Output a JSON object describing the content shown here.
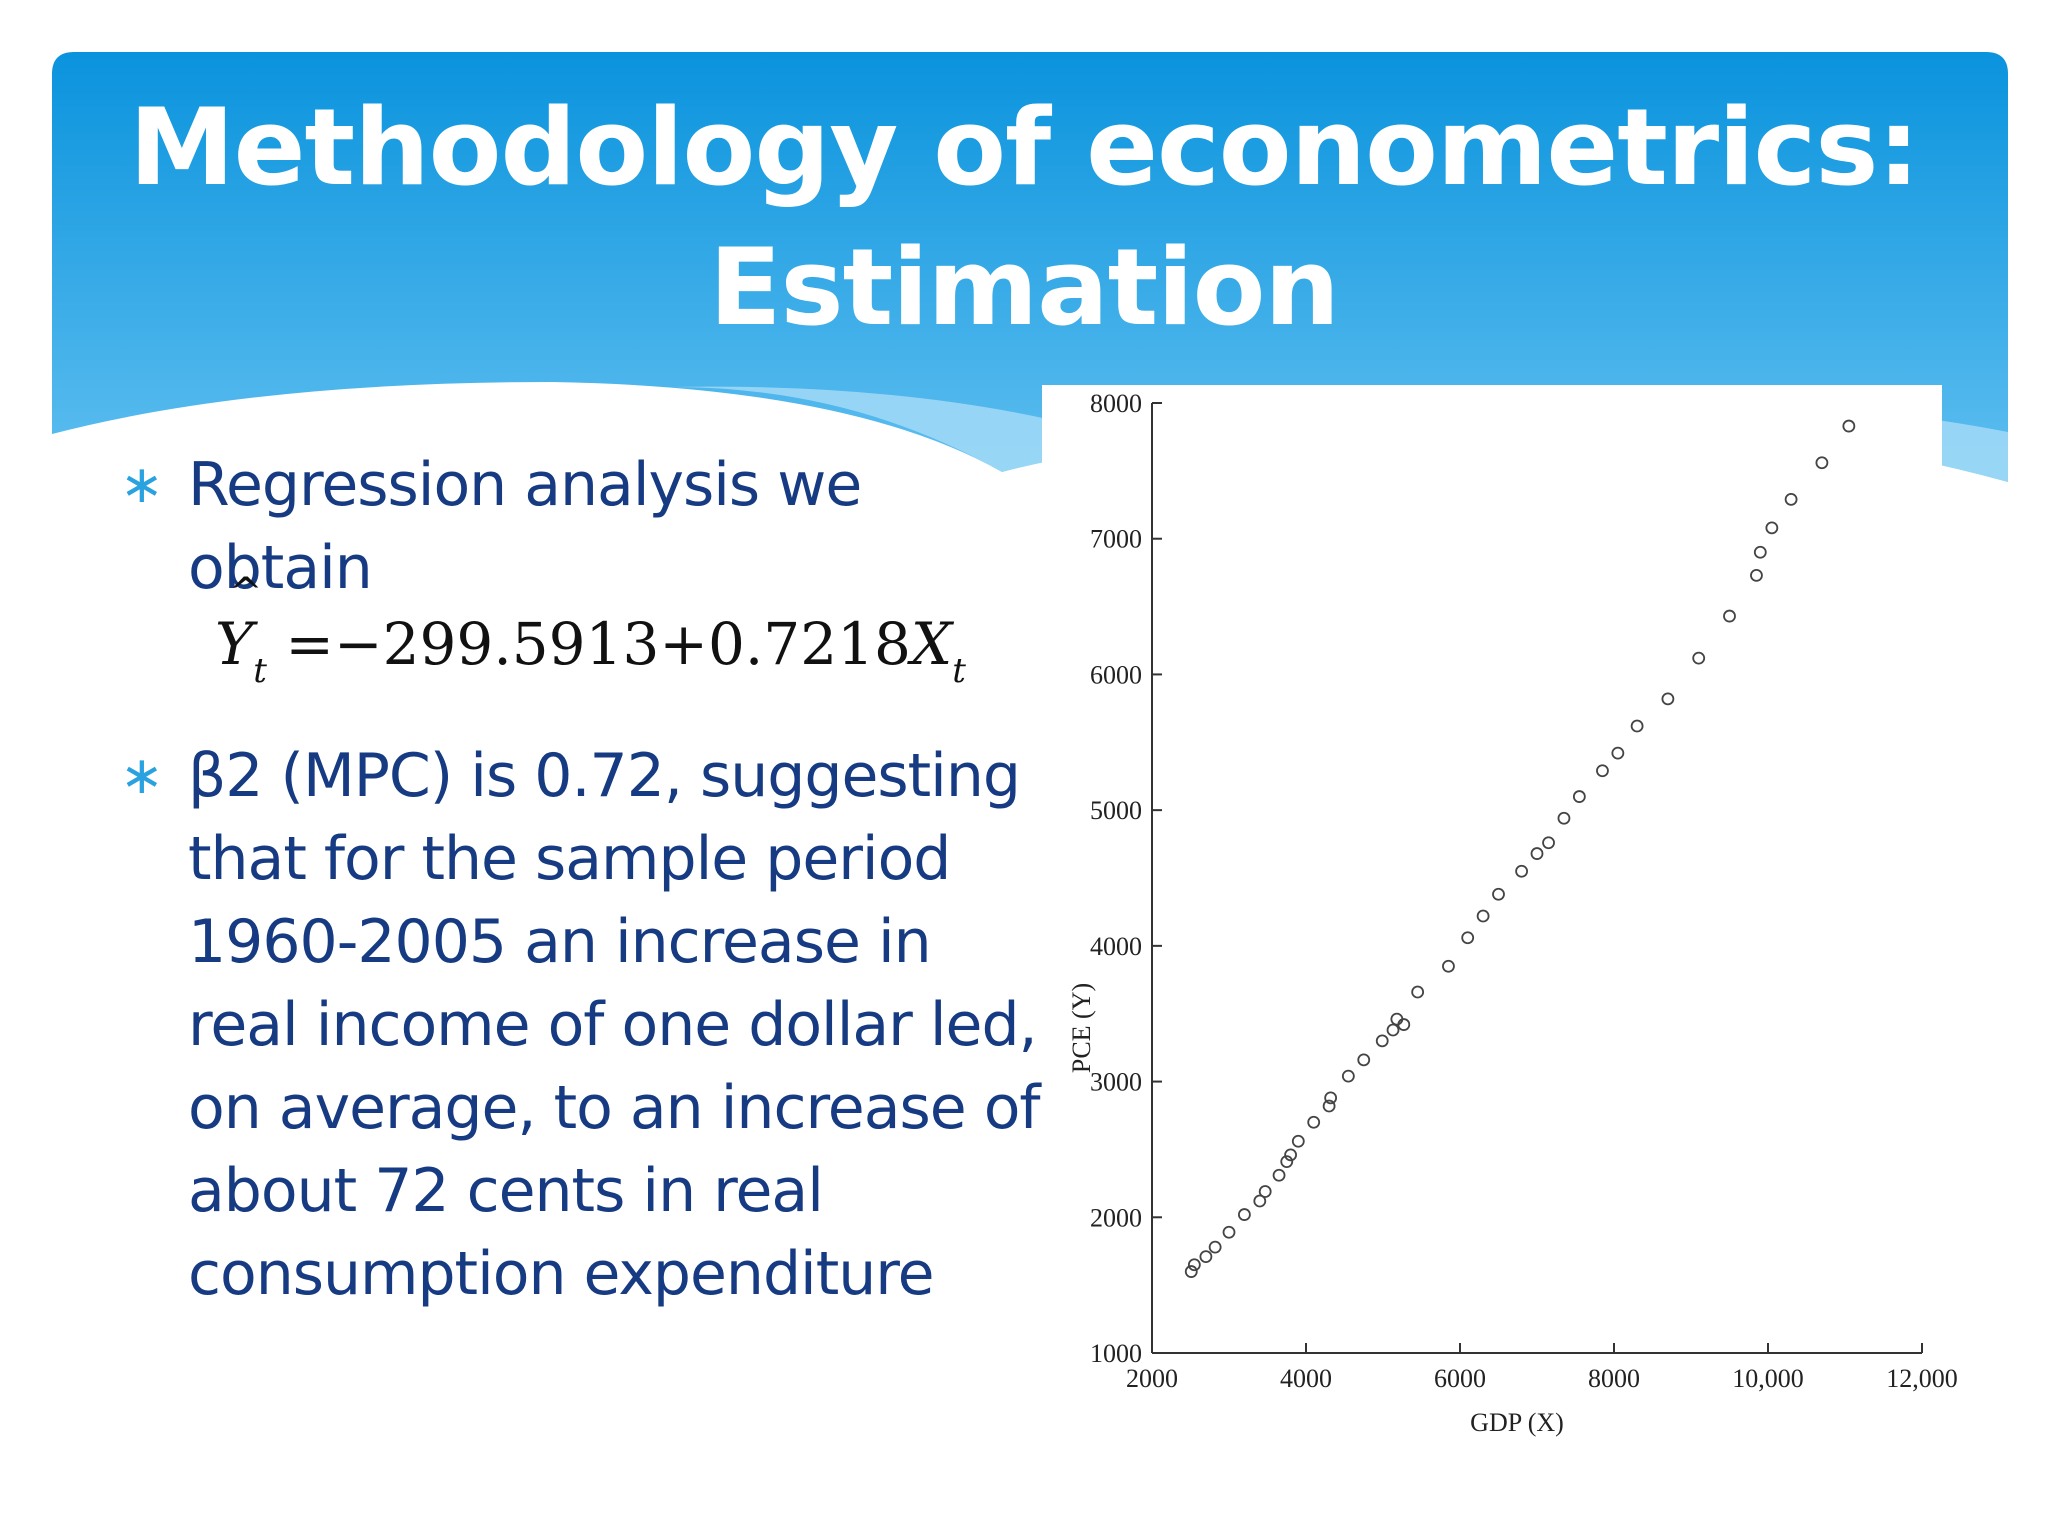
{
  "slide": {
    "title_line1": "Methodology of econometrics:",
    "title_line2": "Estimation",
    "header_colors": {
      "top": "#0a93dd",
      "bottom": "#5fbff0",
      "wave": "#a8dcf7"
    }
  },
  "bullets": [
    {
      "icon": "asterisk-icon",
      "text": "Regression analysis we obtain"
    },
    {
      "icon": "asterisk-icon",
      "text": "β2 (MPC) is 0.72, suggesting that for the sample period 1960-2005 an increase in real income of one dollar led, on average, to an increase of about  72 cents in real consumption expenditure"
    }
  ],
  "equation": {
    "lhs": "Y",
    "lhs_sub": "t",
    "equals": "=",
    "intercept": "−299.5913",
    "plus": "+",
    "slope": "0.7218",
    "rhs_var": "X",
    "rhs_sub": "t"
  },
  "chart_data": {
    "type": "scatter",
    "xlabel": "GDP (X)",
    "ylabel": "PCE (Y)",
    "xlim": [
      2000,
      12000
    ],
    "ylim": [
      1000,
      8000
    ],
    "x_ticks": [
      2000,
      4000,
      6000,
      8000,
      10000,
      12000
    ],
    "x_tick_labels": [
      "2000",
      "4000",
      "6000",
      "8000",
      "10,000",
      "12,000"
    ],
    "y_ticks": [
      1000,
      2000,
      3000,
      4000,
      5000,
      6000,
      7000,
      8000
    ],
    "y_tick_labels": [
      "1000",
      "2000",
      "3000",
      "4000",
      "5000",
      "6000",
      "7000",
      "8000"
    ],
    "marker": "hollow-circle",
    "grid": false,
    "points": [
      [
        2510,
        1600
      ],
      [
        2550,
        1650
      ],
      [
        2700,
        1710
      ],
      [
        2820,
        1780
      ],
      [
        3000,
        1890
      ],
      [
        3200,
        2020
      ],
      [
        3400,
        2120
      ],
      [
        3470,
        2190
      ],
      [
        3650,
        2310
      ],
      [
        3750,
        2410
      ],
      [
        3800,
        2460
      ],
      [
        3900,
        2560
      ],
      [
        4100,
        2700
      ],
      [
        4300,
        2820
      ],
      [
        4320,
        2880
      ],
      [
        4550,
        3040
      ],
      [
        4750,
        3160
      ],
      [
        4990,
        3300
      ],
      [
        5130,
        3380
      ],
      [
        5180,
        3460
      ],
      [
        5270,
        3420
      ],
      [
        5450,
        3660
      ],
      [
        5850,
        3850
      ],
      [
        6100,
        4060
      ],
      [
        6300,
        4220
      ],
      [
        6500,
        4380
      ],
      [
        6800,
        4550
      ],
      [
        7000,
        4680
      ],
      [
        7150,
        4760
      ],
      [
        7350,
        4940
      ],
      [
        7550,
        5100
      ],
      [
        7850,
        5290
      ],
      [
        8050,
        5420
      ],
      [
        8300,
        5620
      ],
      [
        8700,
        5820
      ],
      [
        9100,
        6120
      ],
      [
        9500,
        6430
      ],
      [
        9850,
        6730
      ],
      [
        9900,
        6900
      ],
      [
        10050,
        7080
      ],
      [
        10300,
        7290
      ],
      [
        10700,
        7560
      ],
      [
        11050,
        7830
      ]
    ]
  }
}
